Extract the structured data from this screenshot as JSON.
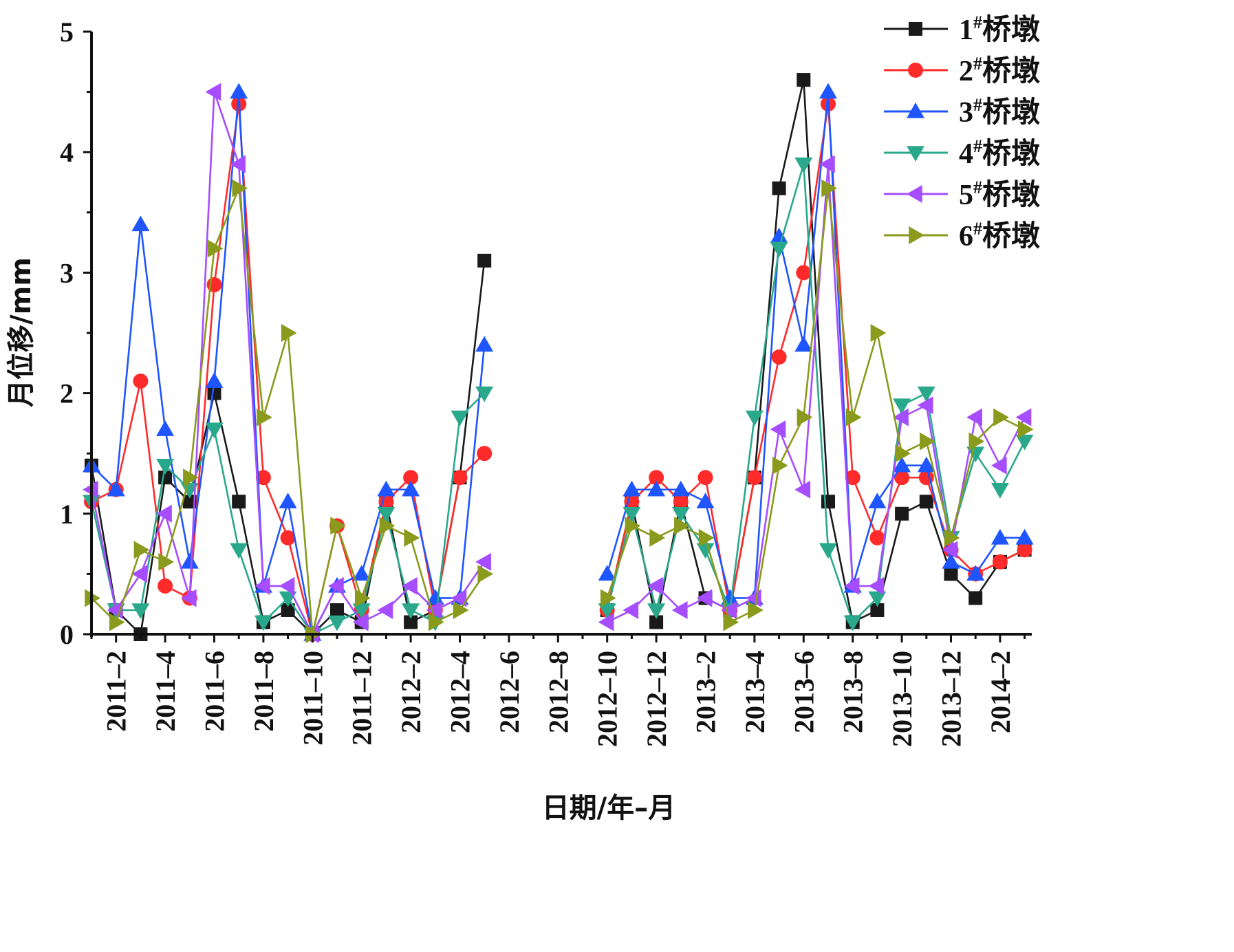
{
  "chart_data": {
    "type": "line",
    "xlabel": "日期/年–月",
    "ylabel": "月位移/mm",
    "ylim": [
      0,
      5
    ],
    "yticks": [
      "0",
      "1",
      "2",
      "3",
      "4",
      "5"
    ],
    "x": [
      "2011-1",
      "2011-2",
      "2011-3",
      "2011-4",
      "2011-5",
      "2011-6",
      "2011-7",
      "2011-8",
      "2011-9",
      "2011-10",
      "2011-11",
      "2011-12",
      "2012-1",
      "2012-2",
      "2012-3",
      "2012-4",
      "2012-5",
      "2012-6",
      "2012-7",
      "2012-8",
      "2012-9",
      "2012-10",
      "2012-11",
      "2012-12",
      "2013-1",
      "2013-2",
      "2013-3",
      "2013-4",
      "2013-5",
      "2013-6",
      "2013-7",
      "2013-8",
      "2013-9",
      "2013-10",
      "2013-11",
      "2013-12",
      "2014-1",
      "2014-2",
      "2014-3"
    ],
    "xtick_labels": [
      "2011–2",
      "2011–4",
      "2011–6",
      "2011–8",
      "2011–10",
      "2011–12",
      "2012–2",
      "2012–4",
      "2012–6",
      "2012–8",
      "2012–10",
      "2012–12",
      "2013–2",
      "2013–4",
      "2013–6",
      "2013–8",
      "2013–10",
      "2013–12",
      "2014–2"
    ],
    "legend_position": "top-right",
    "series": [
      {
        "name": "1#桥墩",
        "label_base": "1",
        "label_sup": "#",
        "label_rest": "桥墩",
        "color": "#1a1a1a",
        "marker": "square",
        "values": [
          1.4,
          0.2,
          0.0,
          1.3,
          1.1,
          2.0,
          1.1,
          0.1,
          0.2,
          0.0,
          0.2,
          0.1,
          1.1,
          0.1,
          0.2,
          1.3,
          3.1,
          null,
          null,
          null,
          null,
          0.2,
          1.1,
          0.1,
          1.1,
          0.3,
          0.2,
          1.3,
          3.7,
          4.6,
          1.1,
          0.1,
          0.2,
          1.0,
          1.1,
          0.5,
          0.3,
          0.6,
          0.7
        ]
      },
      {
        "name": "2#桥墩",
        "label_base": "2",
        "label_sup": "#",
        "label_rest": "桥墩",
        "color": "#ff2a2a",
        "marker": "circle",
        "values": [
          1.1,
          1.2,
          2.1,
          0.4,
          0.3,
          2.9,
          4.4,
          1.3,
          0.8,
          0.0,
          0.9,
          0.2,
          1.1,
          1.3,
          0.2,
          1.3,
          1.5,
          null,
          null,
          null,
          null,
          0.2,
          1.1,
          1.3,
          1.1,
          1.3,
          0.2,
          1.3,
          2.3,
          3.0,
          4.4,
          1.3,
          0.8,
          1.3,
          1.3,
          0.7,
          0.5,
          0.6,
          0.7
        ]
      },
      {
        "name": "3#桥墩",
        "label_base": "3",
        "label_sup": "#",
        "label_rest": "桥墩",
        "color": "#1f55ff",
        "marker": "triangle-up",
        "values": [
          1.4,
          1.2,
          3.4,
          1.7,
          0.6,
          2.1,
          4.5,
          0.4,
          1.1,
          0.0,
          0.4,
          0.5,
          1.2,
          1.2,
          0.3,
          0.3,
          2.4,
          null,
          null,
          null,
          null,
          0.5,
          1.2,
          1.2,
          1.2,
          1.1,
          0.3,
          0.3,
          3.3,
          2.4,
          4.5,
          0.4,
          1.1,
          1.4,
          1.4,
          0.6,
          0.5,
          0.8,
          0.8
        ]
      },
      {
        "name": "4#桥墩",
        "label_base": "4",
        "label_sup": "#",
        "label_rest": "桥墩",
        "color": "#2aa88c",
        "marker": "triangle-down",
        "values": [
          1.1,
          0.2,
          0.2,
          1.4,
          1.2,
          1.7,
          0.7,
          0.1,
          0.3,
          0.0,
          0.1,
          0.2,
          1.0,
          0.2,
          0.1,
          1.8,
          2.0,
          null,
          null,
          null,
          null,
          0.2,
          1.0,
          0.2,
          1.0,
          0.7,
          0.2,
          1.8,
          3.2,
          3.9,
          0.7,
          0.1,
          0.3,
          1.9,
          2.0,
          0.8,
          1.5,
          1.2,
          1.6
        ]
      },
      {
        "name": "5#桥墩",
        "label_base": "5",
        "label_sup": "#",
        "label_rest": "桥墩",
        "color": "#a64dff",
        "marker": "triangle-left",
        "values": [
          1.2,
          0.2,
          0.5,
          1.0,
          0.3,
          4.5,
          3.9,
          0.4,
          0.4,
          0.0,
          0.4,
          0.1,
          0.2,
          0.4,
          0.2,
          0.3,
          0.6,
          null,
          null,
          null,
          null,
          0.1,
          0.2,
          0.4,
          0.2,
          0.3,
          0.2,
          0.3,
          1.7,
          1.2,
          3.9,
          0.4,
          0.4,
          1.8,
          1.9,
          0.7,
          1.8,
          1.4,
          1.8
        ]
      },
      {
        "name": "6#桥墩",
        "label_base": "6",
        "label_sup": "#",
        "label_rest": "桥墩",
        "color": "#8a9a1c",
        "marker": "triangle-right",
        "values": [
          0.3,
          0.1,
          0.7,
          0.6,
          1.3,
          3.2,
          3.7,
          1.8,
          2.5,
          0.0,
          0.9,
          0.3,
          0.9,
          0.8,
          0.1,
          0.2,
          0.5,
          null,
          null,
          null,
          null,
          0.3,
          0.9,
          0.8,
          0.9,
          0.8,
          0.1,
          0.2,
          1.4,
          1.8,
          3.7,
          1.8,
          2.5,
          1.5,
          1.6,
          0.8,
          1.6,
          1.8,
          1.7
        ]
      }
    ]
  }
}
